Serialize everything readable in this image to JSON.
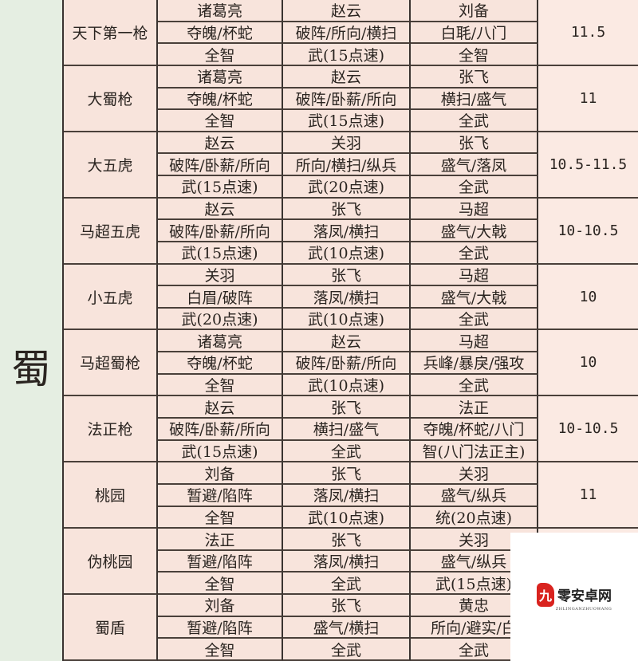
{
  "faction": "蜀",
  "groups": [
    {
      "name": "天下第一枪",
      "score": "11.5",
      "rows": [
        [
          "诸葛亮",
          "赵云",
          "刘备"
        ],
        [
          "夺魄/杯蛇",
          "破阵/所向/横扫",
          "白毦/八门"
        ],
        [
          "全智",
          "武(15点速)",
          "全智"
        ]
      ]
    },
    {
      "name": "大蜀枪",
      "score": "11",
      "rows": [
        [
          "诸葛亮",
          "赵云",
          "张飞"
        ],
        [
          "夺魄/杯蛇",
          "破阵/卧薪/所向",
          "横扫/盛气"
        ],
        [
          "全智",
          "武(15点速)",
          "全武"
        ]
      ]
    },
    {
      "name": "大五虎",
      "score": "10.5-11.5",
      "rows": [
        [
          "赵云",
          "关羽",
          "张飞"
        ],
        [
          "破阵/卧薪/所向",
          "所向/横扫/纵兵",
          "盛气/落凤"
        ],
        [
          "武(15点速)",
          "武(20点速)",
          "全武"
        ]
      ]
    },
    {
      "name": "马超五虎",
      "score": "10-10.5",
      "rows": [
        [
          "赵云",
          "张飞",
          "马超"
        ],
        [
          "破阵/卧薪/所向",
          "落凤/横扫",
          "盛气/大戟"
        ],
        [
          "武(15点速)",
          "武(10点速)",
          "全武"
        ]
      ]
    },
    {
      "name": "小五虎",
      "score": "10",
      "rows": [
        [
          "关羽",
          "张飞",
          "马超"
        ],
        [
          "白眉/破阵",
          "落凤/横扫",
          "盛气/大戟"
        ],
        [
          "武(20点速)",
          "武(10点速)",
          "全武"
        ]
      ]
    },
    {
      "name": "马超蜀枪",
      "score": "10",
      "rows": [
        [
          "诸葛亮",
          "赵云",
          "马超"
        ],
        [
          "夺魄/杯蛇",
          "破阵/卧薪/所向",
          "兵峰/暴戾/强攻"
        ],
        [
          "全智",
          "武(10点速)",
          "全武"
        ]
      ]
    },
    {
      "name": "法正枪",
      "score": "10-10.5",
      "rows": [
        [
          "赵云",
          "张飞",
          "法正"
        ],
        [
          "破阵/卧薪/所向",
          "横扫/盛气",
          "夺魄/杯蛇/八门"
        ],
        [
          "武(15点速)",
          "全武",
          "智(八门法正主)"
        ]
      ]
    },
    {
      "name": "桃园",
      "score": "11",
      "rows": [
        [
          "刘备",
          "张飞",
          "关羽"
        ],
        [
          "暂避/陷阵",
          "落凤/横扫",
          "盛气/纵兵"
        ],
        [
          "全智",
          "武(10点速)",
          "统(20点速)"
        ]
      ]
    },
    {
      "name": "伪桃园",
      "score": "",
      "rows": [
        [
          "法正",
          "张飞",
          "关羽"
        ],
        [
          "暂避/陷阵",
          "落凤/横扫",
          "盛气/纵兵"
        ],
        [
          "全智",
          "全武",
          "武(15点速)"
        ]
      ]
    },
    {
      "name": "蜀盾",
      "score": "",
      "rows": [
        [
          "刘备",
          "张飞",
          "黄忠"
        ],
        [
          "暂避/陷阵",
          "盛气/横扫",
          "所向/避实/白"
        ],
        [
          "全智",
          "全武",
          "全武"
        ]
      ]
    }
  ],
  "watermark": {
    "logo_glyph": "九",
    "text": "零安卓网",
    "sub": "ZHLINGANZHUOWANG"
  },
  "colors": {
    "cell_bg": "#f8e4dc",
    "faction_bg": "#e5eee2",
    "border": "#3a3330"
  }
}
